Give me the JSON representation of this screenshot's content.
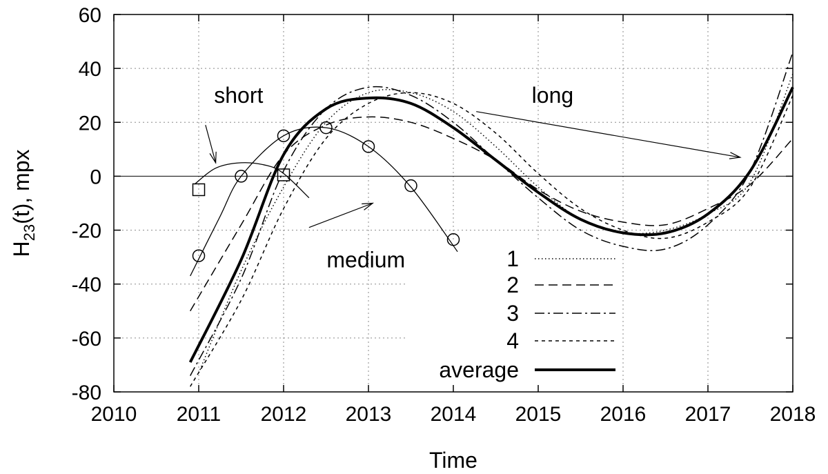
{
  "chart_data": {
    "type": "line",
    "title": "",
    "xlabel": "Time",
    "ylabel": {
      "main": "H",
      "sub": "23",
      "rest": "(t), mpx"
    },
    "xlim": [
      2010,
      2018
    ],
    "ylim": [
      -80,
      60
    ],
    "xticks": [
      2010,
      2011,
      2012,
      2013,
      2014,
      2015,
      2016,
      2017,
      2018
    ],
    "yticks": [
      -80,
      -60,
      -40,
      -20,
      0,
      20,
      40,
      60
    ],
    "grid": true,
    "legend_position": "bottom-center",
    "series": [
      {
        "name": "1",
        "style": "dotted",
        "x": [
          2011.0,
          2011.5,
          2012.0,
          2012.5,
          2013.0,
          2013.5,
          2014.0,
          2014.5,
          2015.0,
          2015.5,
          2016.0,
          2016.5,
          2017.0,
          2017.5,
          2018.0
        ],
        "y": [
          -73,
          -35,
          -4,
          20,
          31,
          31,
          24,
          11,
          -4,
          -16,
          -21,
          -20,
          -14,
          -2,
          38
        ]
      },
      {
        "name": "2",
        "style": "dashed",
        "x": [
          2010.9,
          2011.5,
          2012.0,
          2012.5,
          2013.0,
          2013.5,
          2014.0,
          2014.5,
          2015.0,
          2015.5,
          2016.0,
          2016.5,
          2017.0,
          2017.5,
          2018.0
        ],
        "y": [
          -50,
          -18,
          8,
          19,
          22,
          20,
          14,
          6,
          -5,
          -13,
          -17,
          -18,
          -12,
          -3,
          14
        ]
      },
      {
        "name": "3",
        "style": "dashdot",
        "x": [
          2010.9,
          2011.5,
          2012.0,
          2012.5,
          2013.0,
          2013.5,
          2014.0,
          2014.5,
          2015.0,
          2015.5,
          2016.0,
          2016.5,
          2017.0,
          2017.5,
          2018.0
        ],
        "y": [
          -74,
          -38,
          2,
          25,
          33,
          30,
          20,
          6,
          -8,
          -20,
          -26,
          -27,
          -18,
          2,
          46
        ]
      },
      {
        "name": "4",
        "style": "shortdash",
        "x": [
          2010.9,
          2011.5,
          2012.0,
          2012.5,
          2013.0,
          2013.5,
          2014.0,
          2014.5,
          2015.0,
          2015.5,
          2016.0,
          2016.5,
          2017.0,
          2017.5,
          2018.0
        ],
        "y": [
          -78,
          -46,
          -12,
          14,
          27,
          31,
          27,
          16,
          1,
          -12,
          -20,
          -23,
          -17,
          -4,
          30
        ]
      },
      {
        "name": "average",
        "style": "bold",
        "x": [
          2010.9,
          2011.5,
          2012.0,
          2012.5,
          2013.0,
          2013.5,
          2014.0,
          2014.5,
          2015.0,
          2015.5,
          2016.0,
          2016.5,
          2017.0,
          2017.5,
          2018.0
        ],
        "y": [
          -69,
          -31,
          8,
          25,
          29,
          27,
          18,
          6,
          -6,
          -16,
          -21,
          -21,
          -14,
          2,
          33
        ]
      }
    ],
    "local_fits": [
      {
        "name": "short",
        "marker": "square",
        "x": [
          2010.95,
          2011.2,
          2011.5,
          2011.8,
          2012.0,
          2012.3
        ],
        "y": [
          -3,
          3,
          5,
          4,
          1,
          -8
        ],
        "points": [
          {
            "x": 2011,
            "y": -5
          },
          {
            "x": 2012,
            "y": 0.5
          }
        ]
      },
      {
        "name": "medium",
        "marker": "circle",
        "x": [
          2010.9,
          2011.25,
          2011.5,
          2012.0,
          2012.5,
          2013.0,
          2013.5,
          2014.05
        ],
        "y": [
          -37,
          -15,
          0,
          15,
          18,
          11,
          -4,
          -28
        ],
        "points": [
          {
            "x": 2011,
            "y": -29.5
          },
          {
            "x": 2011.5,
            "y": 0
          },
          {
            "x": 2012,
            "y": 15
          },
          {
            "x": 2012.5,
            "y": 18
          },
          {
            "x": 2013,
            "y": 11
          },
          {
            "x": 2013.5,
            "y": -3.5
          },
          {
            "x": 2014,
            "y": -23.5
          }
        ]
      }
    ],
    "annotations": [
      {
        "text": "short",
        "x": 2011.47,
        "y": 30,
        "arrow_from": [
          2011.08,
          19
        ],
        "arrow_to": [
          2011.2,
          5
        ]
      },
      {
        "text": "medium",
        "x": 2012.97,
        "y": -31,
        "arrow_from": [
          2012.3,
          -19
        ],
        "arrow_to": [
          2013.05,
          -10
        ]
      },
      {
        "text": "long",
        "x": 2015.17,
        "y": 30,
        "arrow_from": [
          2014.27,
          24
        ],
        "arrow_to": [
          2017.38,
          7
        ]
      }
    ]
  }
}
